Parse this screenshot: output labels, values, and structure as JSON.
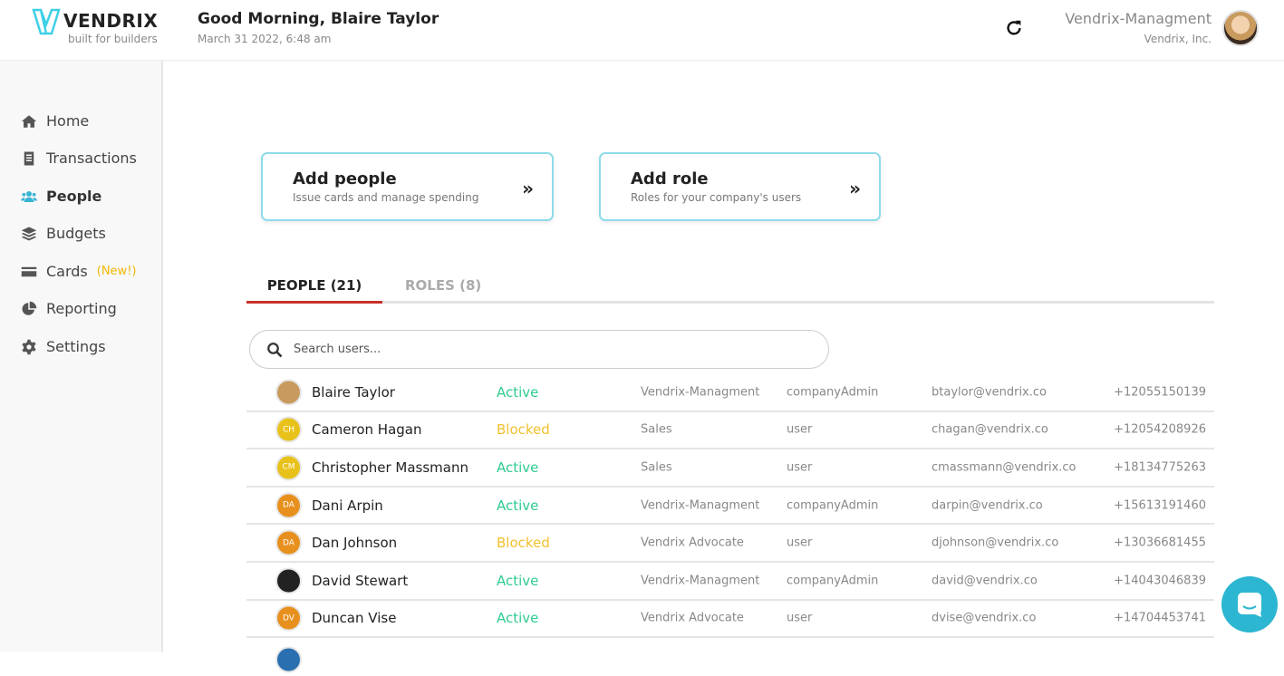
{
  "header": {
    "brand": "VENDRIX",
    "tagline": "built for builders",
    "greeting": "Good Morning, Blaire Taylor",
    "date": "March 31 2022, 6:48 am",
    "org": "Vendrix-Managment",
    "company": "Vendrix, Inc."
  },
  "sidebar": {
    "items": [
      {
        "label": "Home",
        "icon": "home-icon"
      },
      {
        "label": "Transactions",
        "icon": "receipt-icon"
      },
      {
        "label": "People",
        "icon": "users-icon",
        "active": true
      },
      {
        "label": "Budgets",
        "icon": "layers-icon"
      },
      {
        "label": "Cards",
        "icon": "credit-card-icon",
        "badge": "(New!)"
      },
      {
        "label": "Reporting",
        "icon": "pie-chart-icon"
      },
      {
        "label": "Settings",
        "icon": "gear-icon"
      }
    ]
  },
  "cards": [
    {
      "title": "Add people",
      "subtitle": "Issue cards and manage spending"
    },
    {
      "title": "Add role",
      "subtitle": "Roles for your company's users"
    }
  ],
  "tabs": [
    "PEOPLE (21)",
    "ROLES (8)"
  ],
  "search": {
    "placeholder": "Search users..."
  },
  "colors": {
    "accent": "#3ab4d4",
    "active": "#2ecc8f",
    "blocked": "#f2c12e",
    "tab_underline": "#c8302a"
  },
  "people": [
    {
      "name": "Blaire Taylor",
      "initials": "",
      "avatar_color": "#c89a5e",
      "status": "Active",
      "department": "Vendrix-Managment",
      "role": "companyAdmin",
      "email": "btaylor@vendrix.co",
      "phone": "+12055150139"
    },
    {
      "name": "Cameron Hagan",
      "initials": "CH",
      "avatar_color": "#e8c21a",
      "status": "Blocked",
      "department": "Sales",
      "role": "user",
      "email": "chagan@vendrix.co",
      "phone": "+12054208926"
    },
    {
      "name": "Christopher Massmann",
      "initials": "CM",
      "avatar_color": "#e8c21a",
      "status": "Active",
      "department": "Sales",
      "role": "user",
      "email": "cmassmann@vendrix.co",
      "phone": "+18134775263"
    },
    {
      "name": "Dani Arpin",
      "initials": "DA",
      "avatar_color": "#e8901e",
      "status": "Active",
      "department": "Vendrix-Managment",
      "role": "companyAdmin",
      "email": "darpin@vendrix.co",
      "phone": "+15613191460"
    },
    {
      "name": "Dan Johnson",
      "initials": "DA",
      "avatar_color": "#e8901e",
      "status": "Blocked",
      "department": "Vendrix Advocate",
      "role": "user",
      "email": "djohnson@vendrix.co",
      "phone": "+13036681455"
    },
    {
      "name": "David Stewart",
      "initials": "",
      "avatar_color": "#222222",
      "status": "Active",
      "department": "Vendrix-Managment",
      "role": "companyAdmin",
      "email": "david@vendrix.co",
      "phone": "+14043046839"
    },
    {
      "name": "Duncan Vise",
      "initials": "DV",
      "avatar_color": "#e8901e",
      "status": "Active",
      "department": "Vendrix Advocate",
      "role": "user",
      "email": "dvise@vendrix.co",
      "phone": "+14704453741"
    }
  ]
}
